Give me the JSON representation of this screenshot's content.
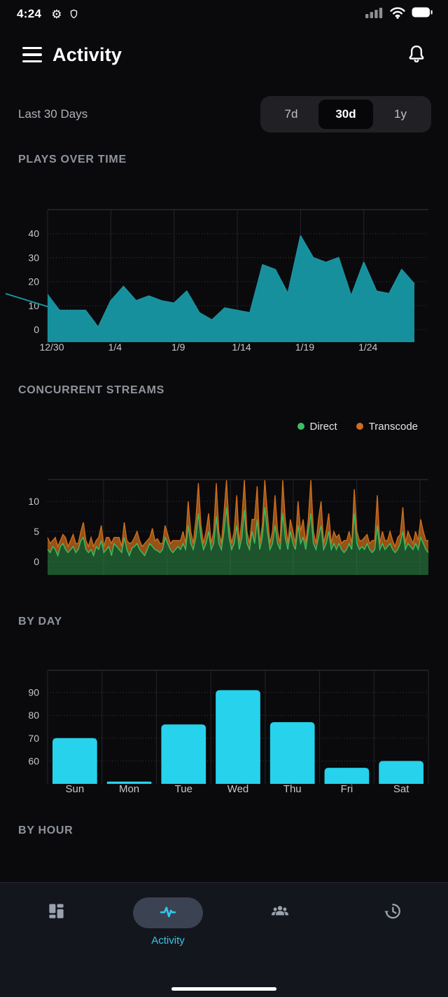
{
  "status_bar": {
    "time": "4:24"
  },
  "app_bar": {
    "title": "Activity"
  },
  "filter": {
    "label": "Last 30 Days",
    "options": [
      "7d",
      "30d",
      "1y"
    ],
    "selected": "30d"
  },
  "sections": {
    "plays": "PLAYS OVER TIME",
    "streams": "CONCURRENT STREAMS",
    "by_day": "BY DAY",
    "by_hour": "BY HOUR"
  },
  "nav": {
    "active_label": "Activity"
  },
  "colors": {
    "plays_teal": "#17909d",
    "bar_cyan": "#27d2ec",
    "direct_green": "#3cbd61",
    "transcode_orange": "#cd6d1d",
    "nav_active_cyan": "#35c6e8"
  },
  "chart_data": [
    {
      "type": "area",
      "title": "Plays Over Time",
      "x": [
        "12/30",
        "12/31",
        "1/1",
        "1/2",
        "1/3",
        "1/4",
        "1/5",
        "1/6",
        "1/7",
        "1/8",
        "1/9",
        "1/10",
        "1/11",
        "1/12",
        "1/13",
        "1/14",
        "1/15",
        "1/16",
        "1/17",
        "1/18",
        "1/19",
        "1/20",
        "1/21",
        "1/22",
        "1/23",
        "1/24",
        "1/25",
        "1/26",
        "1/27",
        "1/28"
      ],
      "values": [
        15,
        8,
        8,
        8,
        1,
        12,
        18,
        12,
        14,
        12,
        11,
        16,
        7,
        4,
        9,
        8,
        7,
        27,
        25,
        15,
        39,
        30,
        28,
        30,
        14,
        28,
        16,
        15,
        25,
        19
      ],
      "yticks": [
        0,
        10,
        20,
        30,
        40
      ],
      "ylim": [
        -5.2,
        50
      ],
      "xtick_labels": [
        "12/30",
        "1/4",
        "1/9",
        "1/14",
        "1/19",
        "1/24"
      ],
      "xtick_indices": [
        0,
        5,
        10,
        15,
        20,
        25
      ],
      "line_color": "#1b919e",
      "fill_color": "#17909d",
      "grid": true
    },
    {
      "type": "area",
      "stacked": true,
      "title": "Concurrent Streams",
      "yticks": [
        0,
        5,
        10
      ],
      "ylim": [
        -2.2,
        13.6
      ],
      "legend_position": "top-right",
      "series": [
        {
          "name": "Direct",
          "color": "#3cbd61",
          "fill": "rgba(47,158,75,0.5)",
          "values": [
            2,
            1.5,
            2.5,
            2,
            1,
            2.5,
            3,
            2,
            1.5,
            2,
            2.5,
            1.5,
            2,
            3.5,
            4,
            2,
            1.5,
            2,
            1,
            2.5,
            2,
            3.5,
            1.5,
            2,
            2.5,
            1,
            3,
            2.5,
            2,
            1.5,
            4,
            2,
            1,
            2.2,
            2.5,
            3,
            2,
            1.5,
            1,
            2,
            3,
            2.5,
            2,
            1.8,
            1.5,
            2,
            4,
            3,
            2,
            1.5,
            2,
            2.5,
            2,
            3,
            2,
            6,
            3,
            2,
            4,
            8,
            4,
            2,
            3,
            5,
            2,
            3,
            7.5,
            3,
            2,
            5,
            9,
            4,
            2,
            3,
            6,
            2,
            4,
            8.5,
            3,
            2,
            5,
            3,
            7,
            2,
            4,
            9,
            5,
            2,
            3,
            6,
            3,
            2,
            8,
            4,
            2,
            5,
            3,
            2,
            6,
            3,
            4,
            2,
            5,
            8,
            3,
            2,
            4,
            6,
            2,
            3,
            5,
            2,
            3,
            2,
            3,
            2,
            1.5,
            2,
            3,
            2,
            8,
            3,
            2,
            2.5,
            2,
            3,
            2,
            1.5,
            2,
            6,
            2,
            3,
            2,
            2.5,
            3,
            2,
            1.5,
            2,
            3,
            5,
            2,
            3,
            2.5,
            2,
            3,
            2,
            4,
            3,
            2,
            1.5
          ]
        },
        {
          "name": "Transcode",
          "color": "#cd6d1d",
          "fill": "rgba(190,103,28,0.78)",
          "values": [
            2,
            1.5,
            1,
            2,
            1.5,
            1,
            1.5,
            2,
            1,
            1.5,
            2,
            1.5,
            1,
            1.5,
            2.5,
            1.5,
            1,
            2,
            1.5,
            1,
            2,
            2.5,
            1,
            2,
            1.5,
            2,
            1,
            1.5,
            2,
            1,
            2.5,
            1.5,
            2,
            1,
            1.5,
            2,
            1.5,
            1,
            2,
            1.5,
            1,
            3,
            1.5,
            2,
            1.5,
            1,
            2,
            1.5,
            1,
            2,
            1.5,
            1,
            1.5,
            2,
            1,
            4,
            2,
            1,
            3,
            5,
            2,
            1,
            2,
            3,
            1,
            2,
            5.5,
            2,
            1,
            3,
            4.5,
            2,
            1,
            2,
            5,
            1,
            3,
            5,
            2,
            1,
            2,
            4,
            5.5,
            1,
            2,
            4.5,
            3,
            1,
            2,
            5,
            2,
            1,
            5.5,
            3,
            1,
            2,
            2,
            1,
            4,
            2,
            3,
            1,
            2,
            5.5,
            2,
            1,
            3,
            4,
            1,
            2,
            3,
            1,
            2,
            2,
            1.5,
            1,
            2,
            1.5,
            2,
            1,
            4,
            2,
            1.5,
            1,
            2,
            1.5,
            1,
            2,
            1.5,
            5,
            1,
            2,
            1.5,
            1,
            2,
            1.5,
            1,
            2,
            1.5,
            4,
            1,
            2,
            1.5,
            1,
            2,
            1.5,
            3,
            2,
            1.5,
            2
          ]
        }
      ],
      "grid": true
    },
    {
      "type": "bar",
      "title": "By Day",
      "categories": [
        "Sun",
        "Mon",
        "Tue",
        "Wed",
        "Thu",
        "Fri",
        "Sat"
      ],
      "values": [
        70,
        51,
        76,
        91,
        77,
        57,
        60
      ],
      "yticks": [
        60,
        70,
        80,
        90
      ],
      "ylim": [
        50,
        99.7
      ],
      "bar_color": "#27d2ec",
      "grid": true
    }
  ]
}
